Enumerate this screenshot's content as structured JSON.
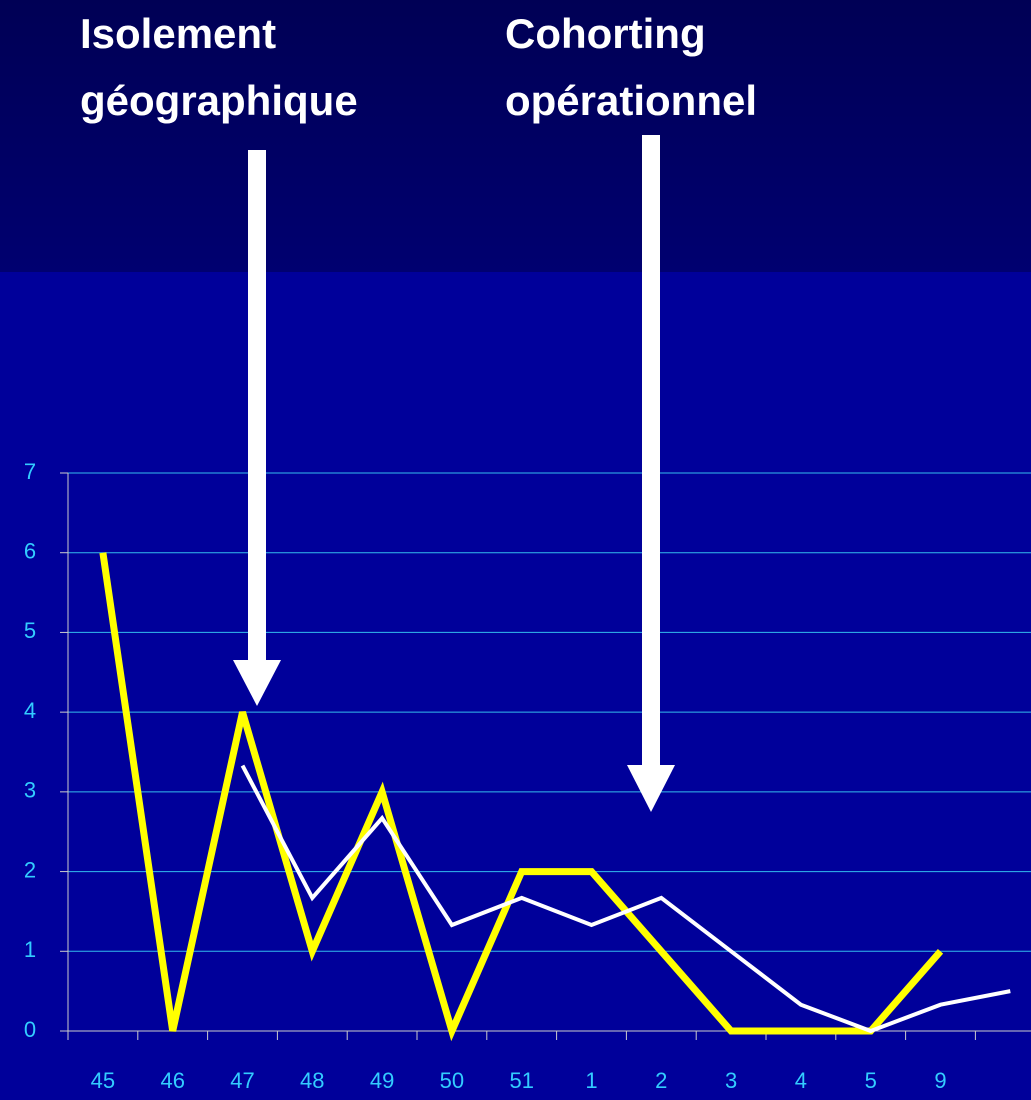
{
  "chart_data": {
    "type": "line",
    "annotations": [
      [
        "Isolement",
        "géographique"
      ],
      [
        "Cohorting",
        "opérationnel"
      ]
    ],
    "categories": [
      "45",
      "46",
      "47",
      "48",
      "49",
      "50",
      "51",
      "1",
      "2",
      "3",
      "4",
      "5",
      "9",
      null
    ],
    "series": [
      {
        "color": "#ffff00",
        "values": [
          6,
          0,
          4,
          1,
          3,
          0,
          2,
          2,
          1,
          0,
          0,
          0,
          1,
          null
        ]
      },
      {
        "color": "#ffffff",
        "values": [
          null,
          null,
          3.33,
          1.67,
          2.67,
          1.33,
          1.67,
          1.33,
          1.67,
          1,
          0.33,
          0,
          0.33,
          0.5
        ]
      }
    ],
    "ylim": [
      0,
      7
    ],
    "yticks": [
      0,
      1,
      2,
      3,
      4,
      5,
      6,
      7
    ],
    "grid": true
  }
}
